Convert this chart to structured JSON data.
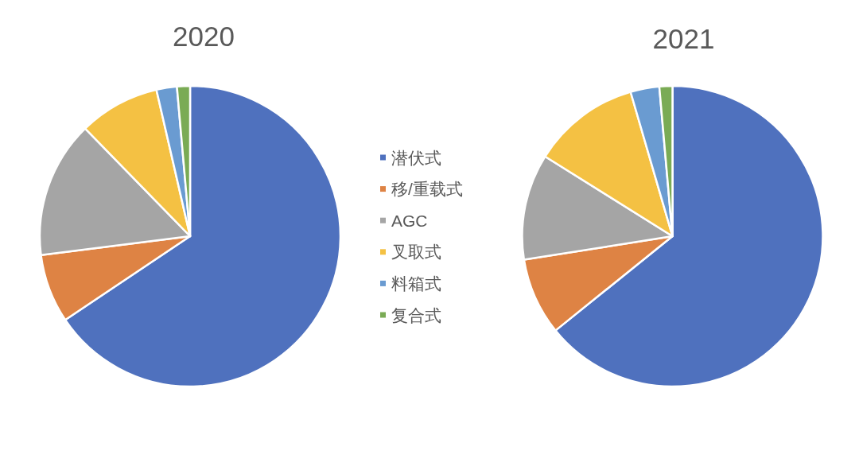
{
  "chart_data": [
    {
      "type": "pie",
      "title": "2020",
      "categories": [
        "潜伏式",
        "移/重载式",
        "AGC",
        "叉取式",
        "料箱式",
        "复合式"
      ],
      "values": [
        65.6,
        7.4,
        14.7,
        8.7,
        2.2,
        1.4
      ],
      "colors": [
        "#4f71be",
        "#de8344",
        "#a5a5a5",
        "#f4c143",
        "#6a9bd1",
        "#7aab55"
      ],
      "legend": "right"
    },
    {
      "type": "pie",
      "title": "2021",
      "categories": [
        null,
        null,
        null,
        null,
        null,
        null
      ],
      "values": [
        64.2,
        8.3,
        11.4,
        11.6,
        3.1,
        1.4
      ],
      "colors": [
        "#4f71be",
        "#de8344",
        "#a5a5a5",
        "#f4c143",
        "#6a9bd1",
        "#7aab55"
      ]
    }
  ]
}
